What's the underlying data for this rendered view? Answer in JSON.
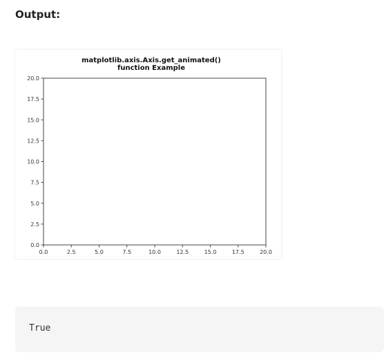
{
  "heading": "Output:",
  "chart_data": {
    "type": "line",
    "title_lines": [
      "matplotlib.axis.Axis.get_animated()",
      "function Example"
    ],
    "xlabel": "",
    "ylabel": "",
    "xlim": [
      0.0,
      20.0
    ],
    "ylim": [
      0.0,
      20.0
    ],
    "xticks": [
      0.0,
      2.5,
      5.0,
      7.5,
      10.0,
      12.5,
      15.0,
      17.5,
      20.0
    ],
    "yticks": [
      0.0,
      2.5,
      5.0,
      7.5,
      10.0,
      12.5,
      15.0,
      17.5,
      20.0
    ],
    "xtick_labels": [
      "0.0",
      "2.5",
      "5.0",
      "7.5",
      "10.0",
      "12.5",
      "15.0",
      "17.5",
      "20.0"
    ],
    "ytick_labels": [
      "0.0",
      "2.5",
      "5.0",
      "7.5",
      "10.0",
      "12.5",
      "15.0",
      "17.5",
      "20.0"
    ],
    "series": [],
    "grid": false
  },
  "output_text": "True"
}
